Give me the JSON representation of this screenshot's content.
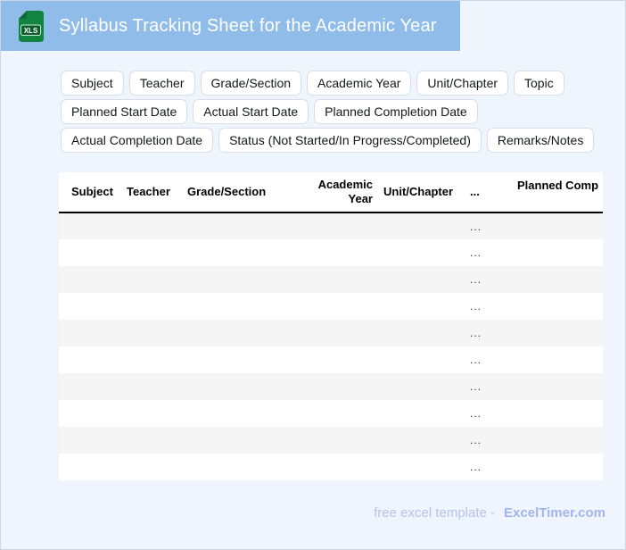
{
  "banner": {
    "title": "Syllabus Tracking Sheet for the Academic Year",
    "file_icon_label": "XLS"
  },
  "chips": {
    "row1": [
      "Subject",
      "Teacher",
      "Grade/Section",
      "Academic Year",
      "Unit/Chapter",
      "Topic"
    ],
    "row2": [
      "Planned Start Date",
      "Actual Start Date",
      "Planned Completion Date"
    ],
    "row3": [
      "Actual Completion Date",
      "Status (Not Started/In Progress/Completed)",
      "Remarks/Notes"
    ]
  },
  "table": {
    "columns": [
      "Subject",
      "Teacher",
      "Grade/Section",
      "Academic Year",
      "Unit/Chapter",
      "...",
      "Planned Comp"
    ],
    "row_count": 10,
    "cell_placeholder": "...",
    "placeholder_column_index": 5
  },
  "footer": {
    "caption": "free excel template -",
    "brand": "ExcelTimer.com"
  },
  "colors": {
    "banner_blue": "#8fbce9",
    "page_background": "#eff5fd",
    "icon_green": "#11843f",
    "icon_green_dark": "#0b5e2c",
    "row_alternate": "#f5f5f6",
    "header_border": "#000000",
    "footer_caption": "#b7c2ec",
    "footer_brand": "#a3b4ea"
  }
}
